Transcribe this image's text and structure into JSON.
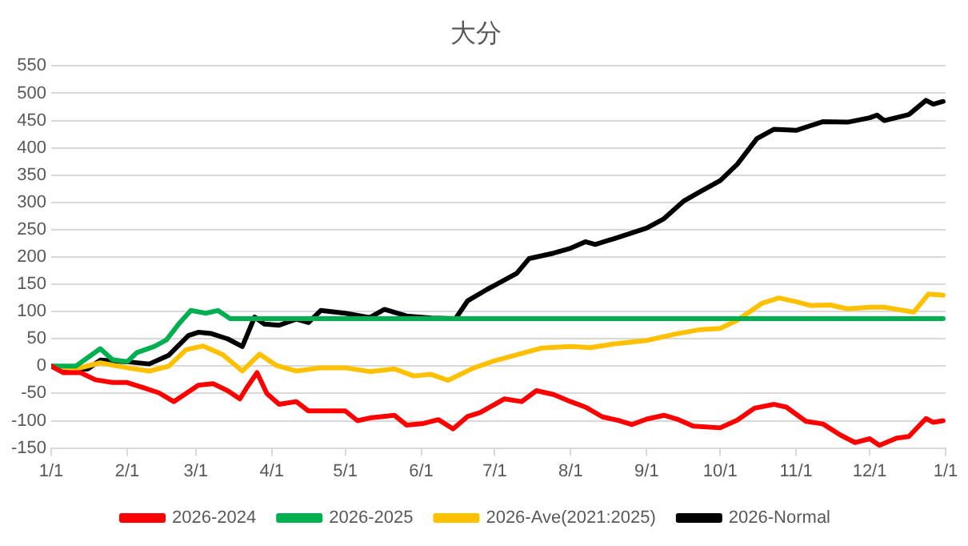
{
  "chart_data": {
    "type": "line",
    "title": "大分",
    "legend": "bottom",
    "grid": "y",
    "marker": "none",
    "line_style": "solid",
    "xlim": [
      "2026-01-01",
      "2027-01-01"
    ],
    "xticks": [
      {
        "value": "2026-01-01",
        "label": "1/1"
      },
      {
        "value": "2026-02-01",
        "label": "2/1"
      },
      {
        "value": "2026-03-01",
        "label": "3/1"
      },
      {
        "value": "2026-04-01",
        "label": "4/1"
      },
      {
        "value": "2026-05-01",
        "label": "5/1"
      },
      {
        "value": "2026-06-01",
        "label": "6/1"
      },
      {
        "value": "2026-07-01",
        "label": "7/1"
      },
      {
        "value": "2026-08-01",
        "label": "8/1"
      },
      {
        "value": "2026-09-01",
        "label": "9/1"
      },
      {
        "value": "2026-10-01",
        "label": "10/1"
      },
      {
        "value": "2026-11-01",
        "label": "11/1"
      },
      {
        "value": "2026-12-01",
        "label": "12/1"
      },
      {
        "value": "2027-01-01",
        "label": "1/1"
      }
    ],
    "ylim": [
      -150,
      550
    ],
    "yticks": [
      -150,
      -100,
      -50,
      0,
      50,
      100,
      150,
      200,
      250,
      300,
      350,
      400,
      450,
      500,
      550
    ],
    "series": [
      {
        "name": "2026-2024",
        "color": "#ff0000",
        "x": [
          "2026-01-01",
          "2026-01-06",
          "2026-01-13",
          "2026-01-19",
          "2026-01-26",
          "2026-02-01",
          "2026-02-08",
          "2026-02-14",
          "2026-02-20",
          "2026-02-25",
          "2026-03-02",
          "2026-03-08",
          "2026-03-14",
          "2026-03-19",
          "2026-03-22",
          "2026-03-26",
          "2026-03-30",
          "2026-04-04",
          "2026-04-11",
          "2026-04-16",
          "2026-04-23",
          "2026-05-01",
          "2026-05-06",
          "2026-05-11",
          "2026-05-21",
          "2026-05-26",
          "2026-06-02",
          "2026-06-08",
          "2026-06-14",
          "2026-06-20",
          "2026-06-25",
          "2026-07-01",
          "2026-07-05",
          "2026-07-12",
          "2026-07-18",
          "2026-07-25",
          "2026-08-01",
          "2026-08-07",
          "2026-08-14",
          "2026-08-21",
          "2026-08-26",
          "2026-09-01",
          "2026-09-08",
          "2026-09-14",
          "2026-09-20",
          "2026-10-01",
          "2026-10-08",
          "2026-10-15",
          "2026-10-23",
          "2026-10-28",
          "2026-11-05",
          "2026-11-12",
          "2026-11-19",
          "2026-11-25",
          "2026-12-01",
          "2026-12-05",
          "2026-12-12",
          "2026-12-17",
          "2026-12-24",
          "2026-12-27",
          "2026-12-31"
        ],
        "values": [
          0,
          -12,
          -12,
          -25,
          -30,
          -30,
          -40,
          -49,
          -65,
          -50,
          -35,
          -32,
          -45,
          -60,
          -38,
          -12,
          -50,
          -70,
          -65,
          -82,
          -82,
          -82,
          -100,
          -95,
          -90,
          -108,
          -105,
          -98,
          -115,
          -92,
          -85,
          -70,
          -60,
          -65,
          -45,
          -52,
          -65,
          -75,
          -93,
          -100,
          -107,
          -97,
          -90,
          -98,
          -110,
          -113,
          -99,
          -77,
          -70,
          -75,
          -101,
          -106,
          -126,
          -140,
          -133,
          -145,
          -132,
          -129,
          -96,
          -103,
          -100
        ]
      },
      {
        "name": "2026-2025",
        "color": "#00b050",
        "x": [
          "2026-01-01",
          "2026-01-11",
          "2026-01-16",
          "2026-01-21",
          "2026-01-26",
          "2026-02-01",
          "2026-02-05",
          "2026-02-12",
          "2026-02-17",
          "2026-02-22",
          "2026-02-27",
          "2026-03-05",
          "2026-03-10",
          "2026-03-15",
          "2026-12-31"
        ],
        "values": [
          0,
          0,
          16,
          32,
          12,
          8,
          25,
          36,
          48,
          77,
          102,
          97,
          102,
          87,
          87
        ]
      },
      {
        "name": "2026-Ave(2021:2025)",
        "color": "#ffc000",
        "x": [
          "2026-01-01",
          "2026-01-11",
          "2026-01-21",
          "2026-02-01",
          "2026-02-10",
          "2026-02-18",
          "2026-02-25",
          "2026-03-04",
          "2026-03-12",
          "2026-03-20",
          "2026-03-27",
          "2026-04-03",
          "2026-04-11",
          "2026-04-21",
          "2026-05-01",
          "2026-05-11",
          "2026-05-21",
          "2026-05-29",
          "2026-06-05",
          "2026-06-12",
          "2026-06-22",
          "2026-07-01",
          "2026-07-10",
          "2026-07-20",
          "2026-08-01",
          "2026-08-09",
          "2026-08-19",
          "2026-09-01",
          "2026-09-13",
          "2026-09-23",
          "2026-10-01",
          "2026-10-08",
          "2026-10-18",
          "2026-10-25",
          "2026-11-01",
          "2026-11-07",
          "2026-11-15",
          "2026-11-22",
          "2026-12-01",
          "2026-12-07",
          "2026-12-19",
          "2026-12-25",
          "2026-12-31"
        ],
        "values": [
          0,
          -5,
          6,
          -3,
          -9,
          0,
          30,
          37,
          21,
          -9,
          22,
          1,
          -9,
          -3,
          -3,
          -10,
          -5,
          -18,
          -15,
          -26,
          -4,
          10,
          21,
          33,
          36,
          34,
          41,
          47,
          59,
          67,
          69,
          84,
          115,
          125,
          118,
          111,
          112,
          105,
          108,
          108,
          99,
          132,
          130
        ]
      },
      {
        "name": "2026-Normal",
        "color": "#000000",
        "x": [
          "2026-01-01",
          "2026-01-06",
          "2026-01-16",
          "2026-01-21",
          "2026-02-01",
          "2026-02-10",
          "2026-02-18",
          "2026-02-22",
          "2026-02-26",
          "2026-03-02",
          "2026-03-07",
          "2026-03-14",
          "2026-03-20",
          "2026-03-25",
          "2026-03-29",
          "2026-04-04",
          "2026-04-11",
          "2026-04-16",
          "2026-04-21",
          "2026-05-01",
          "2026-05-11",
          "2026-05-17",
          "2026-05-26",
          "2026-06-05",
          "2026-06-15",
          "2026-06-20",
          "2026-06-28",
          "2026-07-01",
          "2026-07-10",
          "2026-07-15",
          "2026-07-25",
          "2026-08-01",
          "2026-08-07",
          "2026-08-11",
          "2026-08-19",
          "2026-09-01",
          "2026-09-08",
          "2026-09-16",
          "2026-09-23",
          "2026-10-01",
          "2026-10-08",
          "2026-10-16",
          "2026-10-23",
          "2026-11-01",
          "2026-11-12",
          "2026-11-22",
          "2026-12-01",
          "2026-12-04",
          "2026-12-07",
          "2026-12-17",
          "2026-12-24",
          "2026-12-27",
          "2026-12-31"
        ],
        "values": [
          0,
          -9,
          -5,
          11,
          8,
          4,
          20,
          38,
          56,
          62,
          60,
          50,
          36,
          90,
          77,
          75,
          86,
          80,
          102,
          97,
          89,
          104,
          92,
          88,
          87,
          120,
          141,
          148,
          170,
          197,
          207,
          216,
          228,
          223,
          234,
          253,
          270,
          302,
          320,
          340,
          370,
          417,
          434,
          432,
          448,
          447,
          455,
          460,
          450,
          461,
          487,
          480,
          485
        ]
      }
    ]
  }
}
